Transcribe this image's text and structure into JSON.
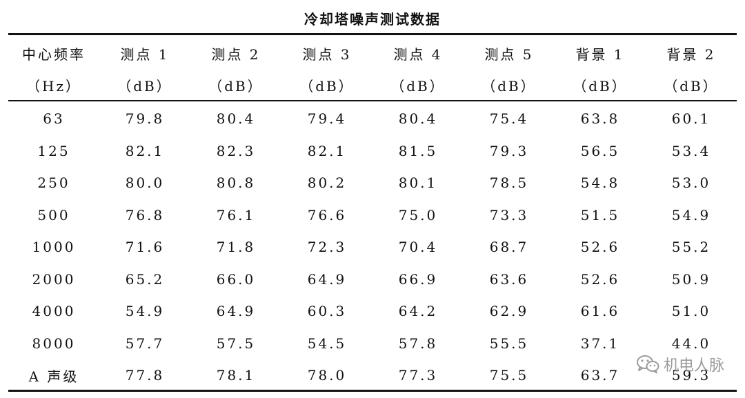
{
  "title": "冷却塔噪声测试数据",
  "header": {
    "row1": [
      "中心频率",
      "测点 1",
      "测点 2",
      "测点 3",
      "测点 4",
      "测点 5",
      "背景 1",
      "背景 2"
    ],
    "row2": [
      "（Hz）",
      "（dB）",
      "（dB）",
      "（dB）",
      "（dB）",
      "（dB）",
      "（dB）",
      "（dB）"
    ]
  },
  "rows": [
    [
      "63",
      "79.8",
      "80.4",
      "79.4",
      "80.4",
      "75.4",
      "63.8",
      "60.1"
    ],
    [
      "125",
      "82.1",
      "82.3",
      "82.1",
      "81.5",
      "79.3",
      "56.5",
      "53.4"
    ],
    [
      "250",
      "80.0",
      "80.8",
      "80.2",
      "80.1",
      "78.5",
      "54.8",
      "53.0"
    ],
    [
      "500",
      "76.8",
      "76.1",
      "76.6",
      "75.0",
      "73.3",
      "51.5",
      "54.9"
    ],
    [
      "1000",
      "71.6",
      "71.8",
      "72.3",
      "70.4",
      "68.7",
      "52.6",
      "55.2"
    ],
    [
      "2000",
      "65.2",
      "66.0",
      "64.9",
      "66.9",
      "63.6",
      "52.6",
      "50.9"
    ],
    [
      "4000",
      "54.9",
      "64.9",
      "60.3",
      "64.2",
      "62.9",
      "61.6",
      "51.0"
    ],
    [
      "8000",
      "57.7",
      "57.5",
      "54.5",
      "57.8",
      "55.5",
      "37.1",
      "44.0"
    ],
    [
      "A 声级",
      "77.8",
      "78.1",
      "78.0",
      "77.3",
      "75.5",
      "63.7",
      "59.3"
    ]
  ],
  "watermark": {
    "icon": "wechat-icon",
    "text": "机电人脉"
  }
}
